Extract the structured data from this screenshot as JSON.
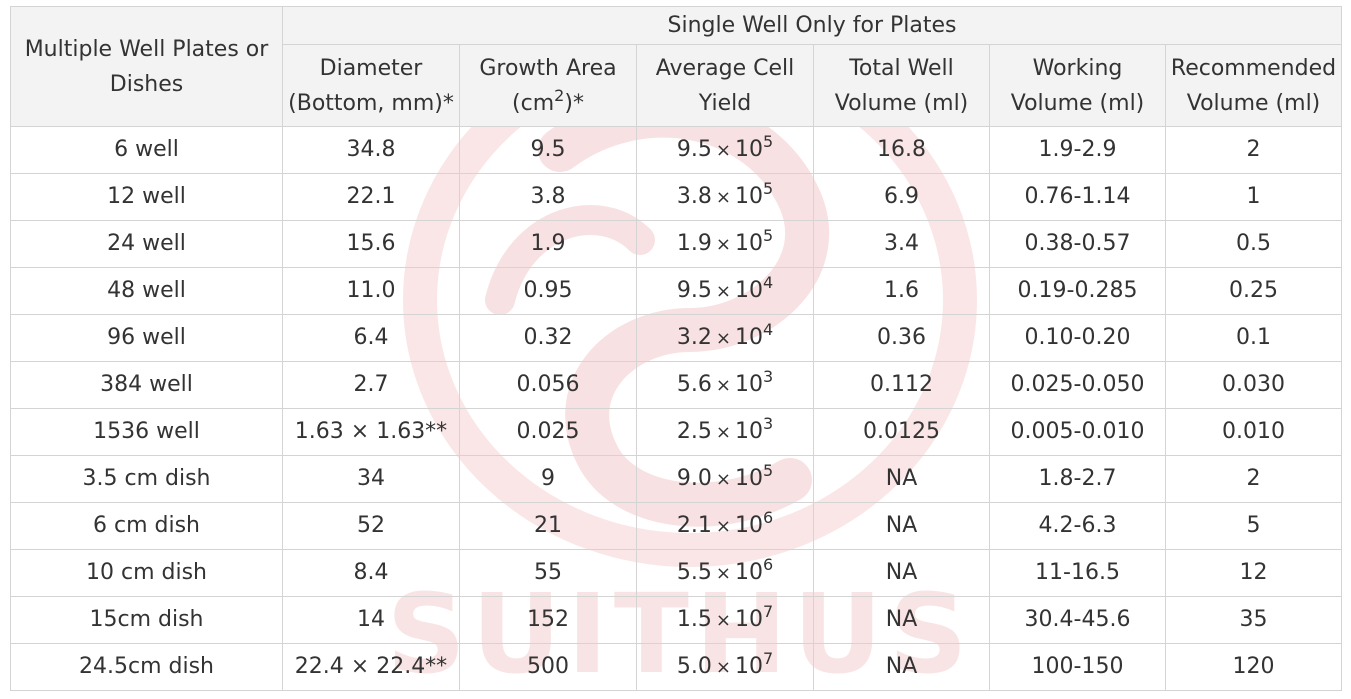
{
  "header": {
    "first_col": "Multiple Well Plates or Dishes",
    "group": "Single Well Only for Plates",
    "columns": {
      "diameter": "Diameter (Bottom, mm)*",
      "growth_area_main": "Growth Area",
      "growth_area_unit": "cm",
      "growth_area_sup": "2",
      "growth_area_suffix": ")*",
      "growth_area_open": "(",
      "cell_yield": "Average Cell Yield",
      "total_volume": "Total Well Volume (ml)",
      "working_volume": "Working Volume (ml)",
      "recommended": "Recommended Volume (ml)"
    }
  },
  "rows": [
    {
      "name": "6 well",
      "diameter": "34.8",
      "area": "9.5",
      "yield_m": "9.5",
      "yield_e": "5",
      "total": "16.8",
      "working": "1.9-2.9",
      "rec": "2"
    },
    {
      "name": "12 well",
      "diameter": "22.1",
      "area": "3.8",
      "yield_m": "3.8",
      "yield_e": "5",
      "total": "6.9",
      "working": "0.76-1.14",
      "rec": "1"
    },
    {
      "name": "24 well",
      "diameter": "15.6",
      "area": "1.9",
      "yield_m": "1.9",
      "yield_e": "5",
      "total": "3.4",
      "working": "0.38-0.57",
      "rec": "0.5"
    },
    {
      "name": "48 well",
      "diameter": "11.0",
      "area": "0.95",
      "yield_m": "9.5",
      "yield_e": "4",
      "total": "1.6",
      "working": "0.19-0.285",
      "rec": "0.25"
    },
    {
      "name": "96 well",
      "diameter": "6.4",
      "area": "0.32",
      "yield_m": "3.2",
      "yield_e": "4",
      "total": "0.36",
      "working": "0.10-0.20",
      "rec": "0.1"
    },
    {
      "name": "384 well",
      "diameter": "2.7",
      "area": "0.056",
      "yield_m": "5.6",
      "yield_e": "3",
      "total": "0.112",
      "working": "0.025-0.050",
      "rec": "0.030"
    },
    {
      "name": "1536 well",
      "diameter": "1.63 × 1.63**",
      "area": "0.025",
      "yield_m": "2.5",
      "yield_e": "3",
      "total": "0.0125",
      "working": "0.005-0.010",
      "rec": "0.010"
    },
    {
      "name": "3.5 cm dish",
      "diameter": "34",
      "area": "9",
      "yield_m": "9.0",
      "yield_e": "5",
      "total": "NA",
      "working": "1.8-2.7",
      "rec": "2"
    },
    {
      "name": "6 cm dish",
      "diameter": "52",
      "area": "21",
      "yield_m": "2.1",
      "yield_e": "6",
      "total": "NA",
      "working": "4.2-6.3",
      "rec": "5"
    },
    {
      "name": "10 cm dish",
      "diameter": "8.4",
      "area": "55",
      "yield_m": "5.5",
      "yield_e": "6",
      "total": "NA",
      "working": "11-16.5",
      "rec": "12"
    },
    {
      "name": "15cm dish",
      "diameter": "14",
      "area": "152",
      "yield_m": "1.5",
      "yield_e": "7",
      "total": "NA",
      "working": "30.4-45.6",
      "rec": "35"
    },
    {
      "name": "24.5cm dish",
      "diameter": "22.4 × 22.4**",
      "area": "500",
      "yield_m": "5.0",
      "yield_e": "7",
      "total": "NA",
      "working": "100-150",
      "rec": "120"
    }
  ],
  "yield_sep": "×",
  "yield_base": "10",
  "watermark": {
    "text": "SUITHUS",
    "color": "#f4c9cc"
  }
}
